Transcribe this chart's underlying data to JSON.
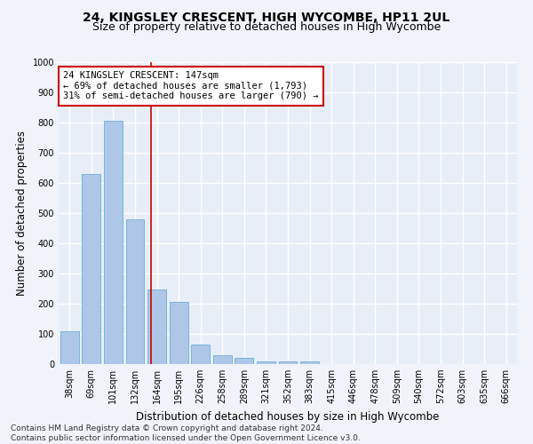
{
  "title": "24, KINGSLEY CRESCENT, HIGH WYCOMBE, HP11 2UL",
  "subtitle": "Size of property relative to detached houses in High Wycombe",
  "xlabel": "Distribution of detached houses by size in High Wycombe",
  "ylabel": "Number of detached properties",
  "footnote": "Contains HM Land Registry data © Crown copyright and database right 2024.\nContains public sector information licensed under the Open Government Licence v3.0.",
  "bar_labels": [
    "38sqm",
    "69sqm",
    "101sqm",
    "132sqm",
    "164sqm",
    "195sqm",
    "226sqm",
    "258sqm",
    "289sqm",
    "321sqm",
    "352sqm",
    "383sqm",
    "415sqm",
    "446sqm",
    "478sqm",
    "509sqm",
    "540sqm",
    "572sqm",
    "603sqm",
    "635sqm",
    "666sqm"
  ],
  "bar_values": [
    110,
    630,
    805,
    480,
    248,
    205,
    65,
    28,
    20,
    10,
    8,
    10,
    0,
    0,
    0,
    0,
    0,
    0,
    0,
    0,
    0
  ],
  "bar_color": "#aec7e8",
  "bar_edge_color": "#6baed6",
  "property_line_x": 3.75,
  "property_sqm": 147,
  "annotation_text": "24 KINGSLEY CRESCENT: 147sqm\n← 69% of detached houses are smaller (1,793)\n31% of semi-detached houses are larger (790) →",
  "annotation_box_color": "#ffffff",
  "annotation_box_edge_color": "#cc0000",
  "vline_color": "#cc0000",
  "ylim": [
    0,
    1000
  ],
  "yticks": [
    0,
    100,
    200,
    300,
    400,
    500,
    600,
    700,
    800,
    900,
    1000
  ],
  "background_color": "#e8eef8",
  "grid_color": "#ffffff",
  "title_fontsize": 10,
  "subtitle_fontsize": 9,
  "axis_label_fontsize": 8.5,
  "tick_fontsize": 7,
  "annotation_fontsize": 7.5,
  "footnote_fontsize": 6.5
}
